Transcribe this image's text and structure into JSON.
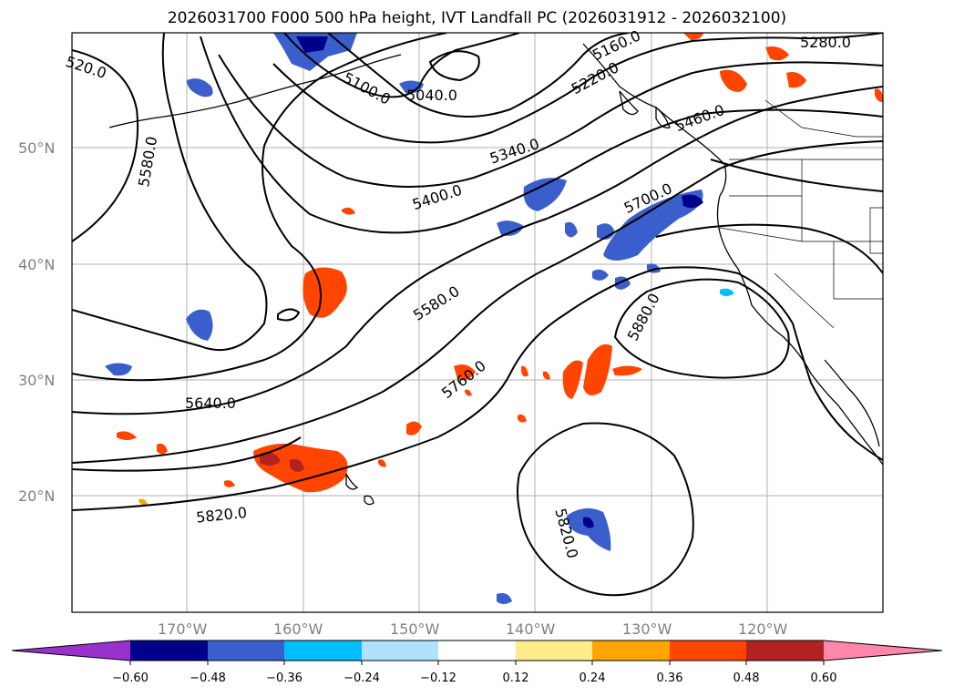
{
  "title": "2026031700 F000 500 hPa height, IVT Landfall PC (2026031912 - 2026032100)",
  "lat_ticks": [
    "50°N",
    "40°N",
    "30°N",
    "20°N"
  ],
  "lon_ticks": [
    "170°W",
    "160°W",
    "150°W",
    "140°W",
    "130°W",
    "120°W"
  ],
  "contour_labels": [
    "520.0",
    "5100.0",
    "5040.0",
    "5160.0",
    "5220.0",
    "5280.0",
    "5460.0",
    "5340.0",
    "5580.0",
    "5400.0",
    "5700.0",
    "5580.0",
    "5880.0",
    "5760.0",
    "5640.0",
    "5820.0",
    "5820.0"
  ],
  "colorbar": {
    "ticks": [
      "−0.60",
      "−0.48",
      "−0.36",
      "−0.24",
      "−0.12",
      "0.12",
      "0.24",
      "0.36",
      "0.48",
      "0.60"
    ],
    "colors": [
      "#9932cc",
      "#00008b",
      "#3a5fcd",
      "#00bfff",
      "#b0e2ff",
      "#ffffff",
      "#ffec8b",
      "#ffa500",
      "#ff4500",
      "#b22222",
      "#ff88aa"
    ]
  }
}
